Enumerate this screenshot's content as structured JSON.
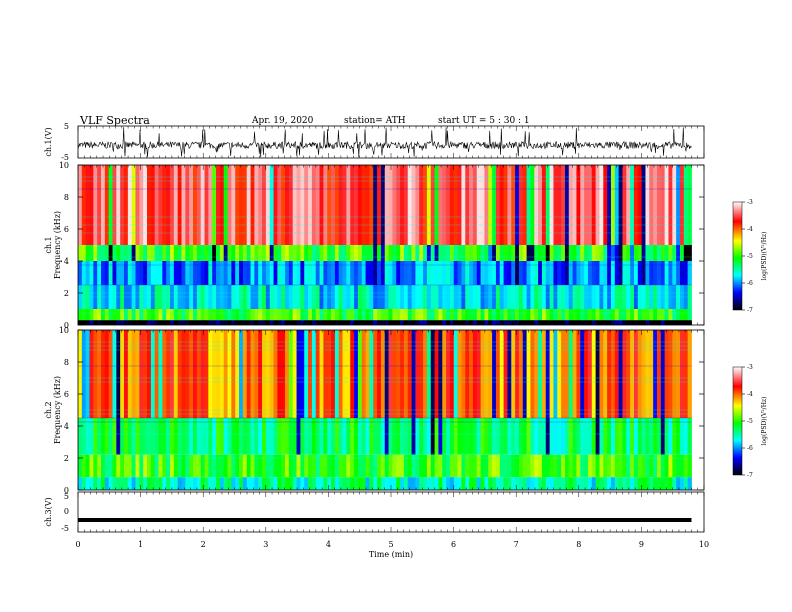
{
  "header": {
    "title": "VLF  Spectra",
    "date": "Apr. 19, 2020",
    "station": "station= ATH",
    "start": "start  UT  =    5  : 30 : 1"
  },
  "chart_data": [
    {
      "type": "line",
      "panel": "ch1-waveform",
      "ylabel": "ch.1(V)",
      "ylim": [
        -5,
        5
      ],
      "yticklabels": [
        "5",
        "-5"
      ],
      "xlim": [
        0,
        10
      ],
      "color": "#000000"
    },
    {
      "type": "heatmap",
      "panel": "ch1-spectrogram",
      "ylabel_lines": [
        "ch.1",
        "Frequency  (kHz)"
      ],
      "ylim": [
        0,
        10
      ],
      "yticks": [
        0,
        2,
        4,
        6,
        8,
        10
      ],
      "yticklabels": [
        "0",
        "2",
        "4",
        "6",
        "8",
        "10"
      ],
      "xlim": [
        0,
        10
      ],
      "data_extent_min": 9.8,
      "colorbar": {
        "label": "log(PSD)(V²/Hz)",
        "range": [
          -7,
          -3
        ],
        "ticks": [
          "-3",
          "-4",
          "-5",
          "-6",
          "-7"
        ],
        "colors": [
          "#ffffff",
          "#ff0000",
          "#ffff00",
          "#00ff00",
          "#00ffff",
          "#0000ff",
          "#000000"
        ]
      },
      "bands_kHz": [
        {
          "range": [
            5.0,
            10.0
          ],
          "level": "high",
          "log_psd": -3.5
        },
        {
          "range": [
            4.0,
            5.0
          ],
          "level": "medium",
          "log_psd": -5.0
        },
        {
          "range": [
            2.5,
            4.0
          ],
          "level": "low",
          "log_psd": -6.0
        },
        {
          "range": [
            1.0,
            2.5
          ],
          "level": "medium-low",
          "log_psd": -5.7
        },
        {
          "range": [
            0.3,
            1.0
          ],
          "level": "medium",
          "log_psd": -5.0
        },
        {
          "range": [
            0.0,
            0.3
          ],
          "level": "lowest",
          "log_psd": -7.0
        }
      ]
    },
    {
      "type": "heatmap",
      "panel": "ch2-spectrogram",
      "ylabel_lines": [
        "ch.2",
        "Frequency  (kHz)"
      ],
      "ylim": [
        0,
        10
      ],
      "yticks": [
        0,
        2,
        4,
        6,
        8,
        10
      ],
      "yticklabels": [
        "0",
        "2",
        "4",
        "6",
        "8",
        "10"
      ],
      "xlim": [
        0,
        10
      ],
      "data_extent_min": 9.8,
      "colorbar": {
        "label": "log(PSD)(V²/Hz)",
        "range": [
          -7,
          -3
        ],
        "ticks": [
          "-3",
          "-4",
          "-5",
          "-6",
          "-7"
        ],
        "colors": [
          "#ffffff",
          "#ff0000",
          "#ffff00",
          "#00ff00",
          "#00ffff",
          "#0000ff",
          "#000000"
        ]
      },
      "bands_kHz": [
        {
          "range": [
            4.5,
            10.0
          ],
          "level": "high",
          "log_psd": -4.0
        },
        {
          "range": [
            2.2,
            4.5
          ],
          "level": "medium",
          "log_psd": -5.3
        },
        {
          "range": [
            0.8,
            2.2
          ],
          "level": "medium",
          "log_psd": -5.0
        },
        {
          "range": [
            0.0,
            0.8
          ],
          "level": "medium-low",
          "log_psd": -5.5
        }
      ]
    },
    {
      "type": "line",
      "panel": "ch3-waveform",
      "ylabel": "ch.3(V)",
      "ylim": [
        -5,
        5
      ],
      "yticklabels": [
        "5",
        "0",
        "-5"
      ],
      "xlim": [
        0,
        10
      ],
      "baseline_V": -2,
      "color": "#000000"
    }
  ],
  "x_axis": {
    "label": "Time  (min)",
    "range": [
      0,
      10
    ],
    "ticks": [
      "0",
      "1",
      "2",
      "3",
      "4",
      "5",
      "6",
      "7",
      "8",
      "9",
      "10"
    ]
  }
}
